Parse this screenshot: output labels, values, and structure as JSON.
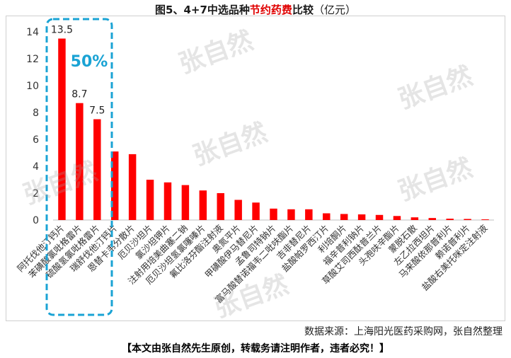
{
  "title_parts": {
    "prefix": "图5、4+7中选品种",
    "highlight": "节约药费",
    "suffix": "比较",
    "unit": "（亿元）"
  },
  "source_text": "数据来源：上海阳光医药采购网，张自然整理",
  "notice_text": "【本文由张自然先生原创，转载务请注明作者，违者必究！】",
  "callout": {
    "text": "50%",
    "color": "#1aa3d4"
  },
  "watermark_text": "张自然",
  "colors": {
    "bar": "#ff0000",
    "highlight_box": "#1aa3d4"
  },
  "chart_data": {
    "type": "bar",
    "title": "图5、4+7中选品种节约药费比较（亿元）",
    "xlabel": "",
    "ylabel": "",
    "ylim": [
      0,
      14
    ],
    "yticks": [
      0,
      2,
      4,
      6,
      8,
      10,
      12,
      14
    ],
    "grid": false,
    "categories": [
      "阿托伐他汀钙片",
      "苯磺酸氯吡格雷片",
      "硫酸氢氯吡格雷片",
      "瑞舒伐他汀钙片",
      "恩替卡韦分散片",
      "厄贝沙坦片",
      "氯沙坦钾片",
      "注射用培美曲塞二钠",
      "厄贝沙坦氢氯噻嗪片",
      "氟比洛芬酯注射液",
      "奥氮平片",
      "甲磺酸伊马替尼片",
      "孟鲁司特钠片",
      "富马酸替诺福韦二吡呋酯片",
      "吉非替尼片",
      "盐酸帕罗西汀片",
      "利培酮片",
      "福辛普利钠片",
      "草酸艾司西酞普兰片",
      "头孢呋辛酯片",
      "蒙脱石散",
      "左乙拉西坦片",
      "马来酸依那普利片",
      "赖诺普利片",
      "盐酸右美托咪定注射液"
    ],
    "values": [
      13.5,
      8.7,
      7.5,
      5.1,
      4.9,
      3.0,
      2.8,
      2.6,
      2.2,
      2.0,
      1.5,
      1.3,
      0.85,
      0.8,
      0.8,
      0.5,
      0.45,
      0.42,
      0.38,
      0.3,
      0.2,
      0.15,
      0.1,
      0.08,
      0.05
    ],
    "data_labels": [
      {
        "index": 0,
        "text": "13.5"
      },
      {
        "index": 1,
        "text": "8.7"
      },
      {
        "index": 2,
        "text": "7.5"
      }
    ]
  }
}
